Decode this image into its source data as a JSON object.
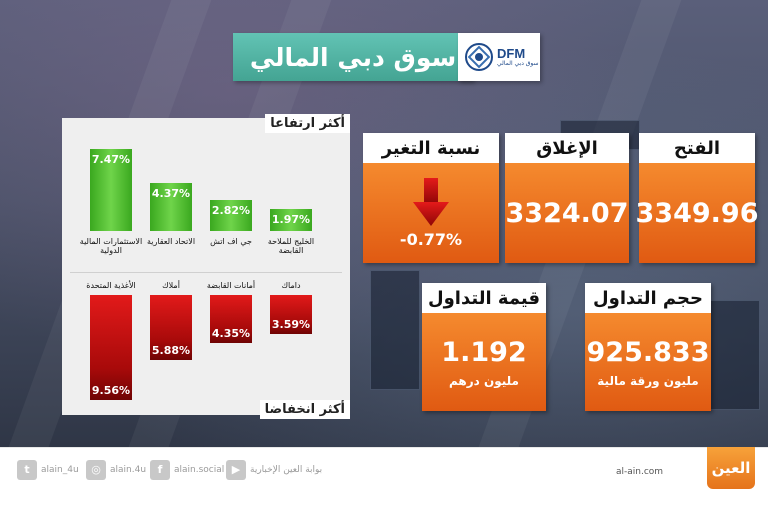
{
  "title": "سوق دبي المالي",
  "logo": {
    "abbr": "DFM",
    "sub": "سوق دبي المالي"
  },
  "gainers": {
    "heading": "أكثر ارتفاعا",
    "items": [
      {
        "name": "الاستثمارات المالية الدولية",
        "value": "7.47%",
        "pct": 7.47
      },
      {
        "name": "الاتحاد العقارية",
        "value": "4.37%",
        "pct": 4.37
      },
      {
        "name": "جي اف اتش",
        "value": "2.82%",
        "pct": 2.82
      },
      {
        "name": "الخليج للملاحة القابضة",
        "value": "1.97%",
        "pct": 1.97
      }
    ]
  },
  "losers": {
    "heading": "أكثر انخفاضا",
    "items": [
      {
        "name": "الأغذية المتحدة",
        "value": "9.56%",
        "pct": 9.56
      },
      {
        "name": "أملاك",
        "value": "5.88%",
        "pct": 5.88
      },
      {
        "name": "أمانات القابضة",
        "value": "4.35%",
        "pct": 4.35
      },
      {
        "name": "داماك",
        "value": "3.59%",
        "pct": 3.59
      }
    ]
  },
  "stats": {
    "change": {
      "label": "نسبة التغير",
      "value": "-0.77%",
      "arrow_icon": "down-arrow-icon"
    },
    "close": {
      "label": "الإغلاق",
      "value": "3324.07"
    },
    "open": {
      "label": "الفتح",
      "value": "3349.96"
    },
    "trade_value": {
      "label": "قيمة التداول",
      "value": "1.192",
      "unit": "مليون درهم"
    },
    "trade_volume": {
      "label": "حجم التداول",
      "value": "925.833",
      "unit": "مليون ورقة مالية"
    }
  },
  "footer": {
    "twitter": "alain_4u",
    "instagram": "alain.4u",
    "facebook": "alain.social",
    "youtube": "بوابة العين الإخبارية",
    "site": "al-ain.com",
    "brand": "العين"
  },
  "colors": {
    "banner": "#4fb3a3",
    "card_orange": "#ec6b1c",
    "gain_green": "#4cbb2c",
    "loss_red": "#d41414"
  }
}
